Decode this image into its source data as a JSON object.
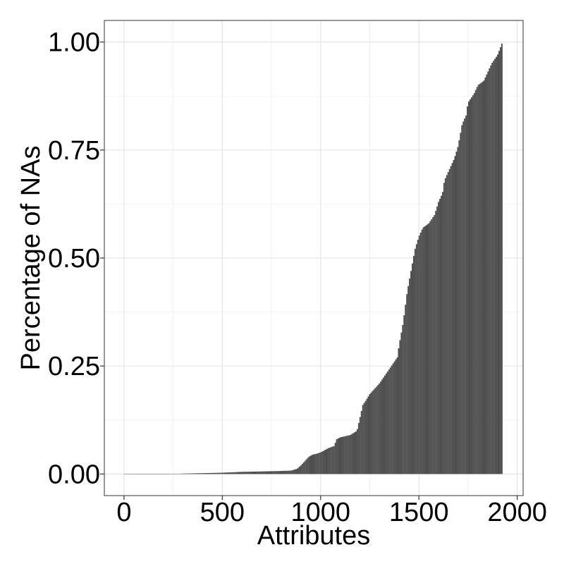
{
  "chart_data": {
    "type": "bar",
    "title": "",
    "xlabel": "Attributes",
    "ylabel": "Percentage of NAs",
    "xlim": [
      -100,
      2030
    ],
    "ylim": [
      -0.05,
      1.05
    ],
    "xticks": [
      0,
      500,
      1000,
      1500,
      2000
    ],
    "xtick_labels": [
      "0",
      "500",
      "1000",
      "1500",
      "2000"
    ],
    "yticks": [
      0.0,
      0.25,
      0.5,
      0.75,
      1.0
    ],
    "ytick_labels": [
      "0.00",
      "0.25",
      "0.50",
      "0.75",
      "1.00"
    ],
    "grid": true,
    "legend": "none",
    "bar_color": "#4d4d4d",
    "bar_count": 1925,
    "curve": {
      "x": [
        1,
        250,
        300,
        400,
        500,
        550,
        600,
        700,
        800,
        850,
        880,
        900,
        920,
        940,
        960,
        980,
        1000,
        1040,
        1070,
        1080,
        1100,
        1150,
        1185,
        1200,
        1215,
        1230,
        1250,
        1280,
        1300,
        1330,
        1360,
        1390,
        1400,
        1420,
        1440,
        1460,
        1480,
        1500,
        1520,
        1550,
        1580,
        1600,
        1620,
        1630,
        1650,
        1680,
        1700,
        1720,
        1740,
        1750,
        1780,
        1800,
        1830,
        1850,
        1870,
        1900,
        1925
      ],
      "y": [
        0.0,
        0.0,
        0.001,
        0.002,
        0.003,
        0.004,
        0.005,
        0.006,
        0.007,
        0.008,
        0.012,
        0.02,
        0.03,
        0.04,
        0.045,
        0.047,
        0.05,
        0.06,
        0.065,
        0.08,
        0.085,
        0.09,
        0.1,
        0.13,
        0.16,
        0.17,
        0.185,
        0.2,
        0.21,
        0.23,
        0.25,
        0.27,
        0.3,
        0.35,
        0.42,
        0.47,
        0.52,
        0.55,
        0.57,
        0.58,
        0.6,
        0.63,
        0.65,
        0.68,
        0.7,
        0.73,
        0.76,
        0.81,
        0.83,
        0.86,
        0.88,
        0.9,
        0.91,
        0.93,
        0.95,
        0.97,
        1.0
      ]
    }
  }
}
